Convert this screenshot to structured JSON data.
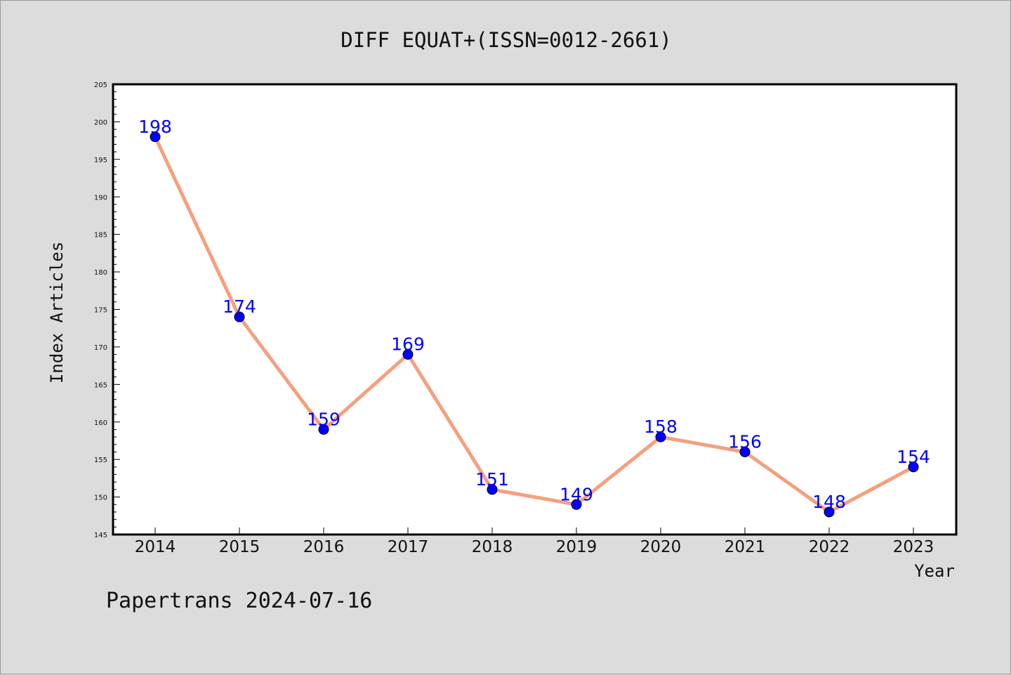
{
  "chart_data": {
    "type": "line",
    "title": "DIFF EQUAT+(ISSN=0012-2661)",
    "xlabel": "Year",
    "ylabel": "Index Articles",
    "categories": [
      "2014",
      "2015",
      "2016",
      "2017",
      "2018",
      "2019",
      "2020",
      "2021",
      "2022",
      "2023"
    ],
    "values": [
      198,
      174,
      159,
      169,
      151,
      149,
      158,
      156,
      148,
      154
    ],
    "ylim": [
      145,
      205
    ],
    "yticks": [
      145,
      150,
      155,
      160,
      165,
      170,
      175,
      180,
      185,
      190,
      195,
      200,
      205
    ],
    "grid": false,
    "legend": "none",
    "line_color": "#f4a07e",
    "marker_color": "#0000ff",
    "label_color": "#0000ff"
  },
  "footer": {
    "text": "Papertrans 2024-07-16"
  }
}
